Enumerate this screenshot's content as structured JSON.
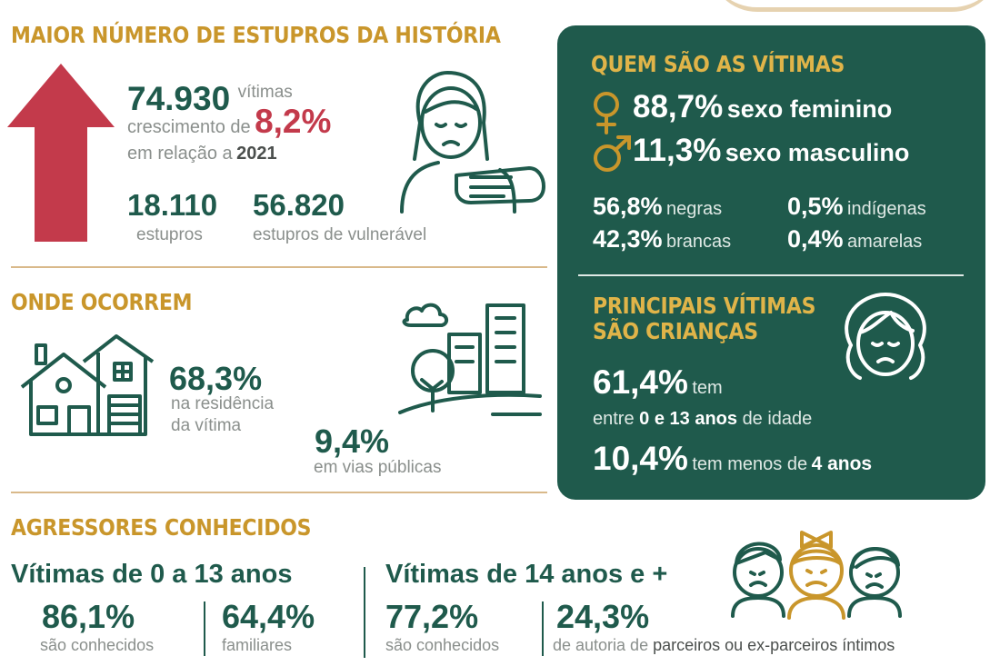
{
  "colors": {
    "green": "#1f5a4c",
    "gold": "#c9962b",
    "red": "#c33a4b",
    "rule": "#d9b98a"
  },
  "section1": {
    "title": "MAIOR NÚMERO DE ESTUPROS DA HISTÓRIA",
    "total": "74.930",
    "total_unit": "vítimas",
    "growth_prefix": "crescimento de",
    "growth_value": "8,2%",
    "compare_prefix": "em relação a",
    "compare_year": "2021",
    "stat1_value": "18.110",
    "stat1_label": "estupros",
    "stat2_value": "56.820",
    "stat2_label": "estupros de vulnerável"
  },
  "section2": {
    "title": "ONDE OCORREM",
    "home_value": "68,3%",
    "home_label1": "na residência",
    "home_label2": "da vítima",
    "street_value": "9,4%",
    "street_label": "em vias públicas"
  },
  "section3": {
    "title": "AGRESSORES CONHECIDOS",
    "group1_title": "Vítimas de 0 a 13 anos",
    "g1a_value": "86,1%",
    "g1a_label": "são conhecidos",
    "g1b_value": "64,4%",
    "g1b_label": "familiares",
    "group2_title": "Vítimas de 14 anos e +",
    "g2a_value": "77,2%",
    "g2a_label": "são conhecidos",
    "g2b_value": "24,3%",
    "g2b_label_prefix": "de autoria de",
    "g2b_label_bold": "parceiros ou ex-parceiros íntimos"
  },
  "panel": {
    "title": "QUEM SÃO AS VÍTIMAS",
    "female_value": "88,7%",
    "female_label": "sexo feminino",
    "male_value": "11,3%",
    "male_label": "sexo masculino",
    "race": [
      {
        "value": "56,8%",
        "label": "negras"
      },
      {
        "value": "0,5%",
        "label": "indígenas"
      },
      {
        "value": "42,3%",
        "label": "brancas"
      },
      {
        "value": "0,4%",
        "label": "amarelas"
      }
    ],
    "children_title1": "PRINCIPAIS VÍTIMAS",
    "children_title2": "SÃO CRIANÇAS",
    "c1_value": "61,4%",
    "c1_suffix": "tem",
    "c1_line2_prefix": "entre",
    "c1_line2_bold": "0 e 13 anos",
    "c1_line2_suffix": "de idade",
    "c2_value": "10,4%",
    "c2_prefix": "tem menos de",
    "c2_bold": "4 anos"
  },
  "icons": [
    "up-arrow-icon",
    "woman-hand-icon",
    "female-symbol-icon",
    "male-symbol-icon",
    "houses-icon",
    "city-park-icon",
    "girl-face-icon",
    "children-faces-icon"
  ]
}
